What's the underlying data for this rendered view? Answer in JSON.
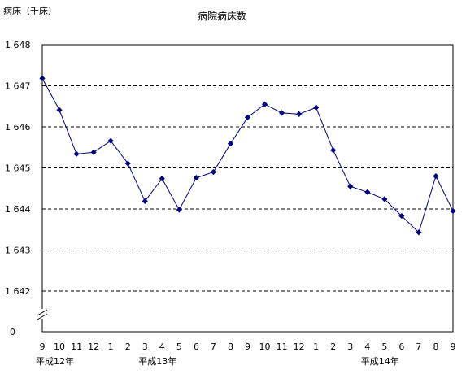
{
  "chart_data": {
    "type": "line",
    "title": "病院病床数",
    "ylabel": "病床（千床）",
    "ylim": [
      1642,
      1648
    ],
    "y_ticks": [
      "1 648",
      "1 647",
      "1 646",
      "1 645",
      "1 644",
      "1 643",
      "1 642"
    ],
    "y_zero_label": "0",
    "y_axis_break": true,
    "grid": "horizontal dashed",
    "x_tick_labels": [
      "9",
      "10",
      "11",
      "12",
      "1",
      "2",
      "3",
      "4",
      "5",
      "6",
      "7",
      "8",
      "9",
      "10",
      "11",
      "12",
      "1",
      "2",
      "3",
      "4",
      "5",
      "6",
      "7",
      "8",
      "9"
    ],
    "year_labels": [
      {
        "text": "平成12年",
        "at_index": 0
      },
      {
        "text": "平成13年",
        "at_index": 6
      },
      {
        "text": "平成14年",
        "at_index": 19
      }
    ],
    "series": [
      {
        "color": "#00007f",
        "values": [
          1647.18,
          1646.41,
          1645.34,
          1645.38,
          1645.66,
          1645.11,
          1644.19,
          1644.74,
          1643.98,
          1644.76,
          1644.9,
          1645.59,
          1646.23,
          1646.55,
          1646.34,
          1646.31,
          1646.47,
          1645.43,
          1644.55,
          1644.41,
          1644.24,
          1643.83,
          1643.43,
          1644.8,
          1643.95
        ]
      }
    ]
  }
}
